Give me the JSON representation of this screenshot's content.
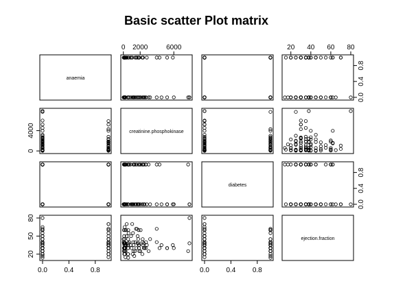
{
  "title": "Basic scatter Plot matrix",
  "chart_data": {
    "type": "scatter",
    "title": "Basic scatter Plot matrix",
    "variables": [
      "anaemia",
      "creatinine.phosphokinase",
      "diabetes",
      "ejection.fraction"
    ],
    "ranges": {
      "anaemia": [
        0,
        1
      ],
      "creatinine.phosphokinase": [
        23,
        7861
      ],
      "diabetes": [
        0,
        1
      ],
      "ejection.fraction": [
        14,
        80
      ]
    },
    "axes": {
      "anaemia": {
        "ticks": [
          0,
          0.4,
          0.8
        ],
        "labels": [
          "0.0",
          "0.4",
          "0.8"
        ]
      },
      "creatinine.phosphokinase": {
        "ticks": [
          0,
          2000,
          6000
        ],
        "labels": [
          "0",
          "2000",
          "6000"
        ],
        "left_ticks": [
          0,
          4000
        ],
        "left_labels": [
          "0",
          "4000"
        ]
      },
      "diabetes": {
        "ticks": [
          0,
          0.4,
          0.8
        ],
        "labels": [
          "0.0",
          "0.4",
          "0.8"
        ]
      },
      "ejection.fraction": {
        "ticks": [
          20,
          40,
          60,
          80
        ],
        "labels": [
          "20",
          "40",
          "60",
          "80"
        ],
        "left_ticks": [
          20,
          50,
          80
        ],
        "left_labels": [
          "20",
          "50",
          "80"
        ]
      }
    },
    "observations": [
      [
        0,
        582,
        0,
        20
      ],
      [
        0,
        7861,
        0,
        38
      ],
      [
        0,
        146,
        0,
        20
      ],
      [
        1,
        111,
        0,
        20
      ],
      [
        1,
        160,
        1,
        20
      ],
      [
        1,
        47,
        0,
        40
      ],
      [
        1,
        246,
        0,
        15
      ],
      [
        1,
        315,
        1,
        60
      ],
      [
        0,
        157,
        0,
        65
      ],
      [
        1,
        123,
        0,
        35
      ],
      [
        1,
        81,
        0,
        38
      ],
      [
        0,
        231,
        1,
        25
      ],
      [
        1,
        981,
        0,
        30
      ],
      [
        1,
        168,
        0,
        38
      ],
      [
        0,
        80,
        1,
        30
      ],
      [
        1,
        379,
        0,
        50
      ],
      [
        1,
        149,
        0,
        38
      ],
      [
        0,
        582,
        1,
        14
      ],
      [
        1,
        125,
        0,
        25
      ],
      [
        1,
        52,
        0,
        25
      ],
      [
        0,
        128,
        1,
        30
      ],
      [
        1,
        220,
        0,
        35
      ],
      [
        0,
        63,
        1,
        60
      ],
      [
        0,
        582,
        1,
        30
      ],
      [
        0,
        148,
        1,
        38
      ],
      [
        0,
        112,
        0,
        40
      ],
      [
        0,
        122,
        0,
        45
      ],
      [
        1,
        60,
        0,
        38
      ],
      [
        0,
        70,
        1,
        30
      ],
      [
        0,
        582,
        0,
        38
      ],
      [
        0,
        23,
        0,
        45
      ],
      [
        1,
        249,
        1,
        35
      ],
      [
        1,
        159,
        1,
        30
      ],
      [
        0,
        94,
        0,
        50
      ],
      [
        1,
        855,
        1,
        35
      ],
      [
        0,
        2656,
        1,
        30
      ],
      [
        0,
        235,
        1,
        38
      ],
      [
        0,
        582,
        0,
        35
      ],
      [
        1,
        124,
        0,
        30
      ],
      [
        1,
        571,
        1,
        45
      ],
      [
        0,
        588,
        1,
        60
      ],
      [
        0,
        582,
        1,
        38
      ],
      [
        0,
        1380,
        0,
        25
      ],
      [
        1,
        582,
        1,
        38
      ],
      [
        0,
        553,
        0,
        20
      ],
      [
        1,
        129,
        1,
        30
      ],
      [
        0,
        582,
        1,
        30
      ],
      [
        0,
        265,
        1,
        25
      ],
      [
        1,
        1846,
        1,
        35
      ],
      [
        1,
        335,
        0,
        35
      ],
      [
        0,
        231,
        0,
        30
      ],
      [
        0,
        1111,
        0,
        20
      ],
      [
        1,
        1853,
        0,
        30
      ],
      [
        0,
        1185,
        0,
        40
      ],
      [
        0,
        196,
        0,
        60
      ],
      [
        1,
        1610,
        1,
        62
      ],
      [
        1,
        2261,
        0,
        20
      ],
      [
        0,
        2522,
        0,
        30
      ],
      [
        0,
        3964,
        1,
        62
      ],
      [
        0,
        2413,
        0,
        38
      ],
      [
        1,
        5882,
        0,
        35
      ],
      [
        0,
        5209,
        0,
        30
      ],
      [
        0,
        7702,
        1,
        25
      ],
      [
        1,
        3966,
        0,
        40
      ],
      [
        0,
        4540,
        0,
        35
      ],
      [
        0,
        2017,
        0,
        25
      ],
      [
        1,
        1820,
        0,
        38
      ],
      [
        0,
        2695,
        1,
        40
      ],
      [
        1,
        1419,
        1,
        40
      ],
      [
        0,
        2060,
        1,
        60
      ],
      [
        1,
        2334,
        1,
        35
      ],
      [
        0,
        1548,
        0,
        30
      ],
      [
        0,
        1896,
        1,
        25
      ],
      [
        1,
        2794,
        0,
        35
      ],
      [
        0,
        3185,
        0,
        45
      ],
      [
        1,
        4300,
        1,
        30
      ],
      [
        0,
        2281,
        1,
        40
      ],
      [
        0,
        1211,
        1,
        35
      ],
      [
        1,
        1767,
        0,
        45
      ],
      [
        0,
        1808,
        0,
        60
      ],
      [
        1,
        5209,
        0,
        30
      ],
      [
        0,
        910,
        0,
        50
      ],
      [
        1,
        615,
        1,
        55
      ],
      [
        0,
        720,
        1,
        40
      ],
      [
        0,
        1688,
        0,
        38
      ],
      [
        1,
        1876,
        1,
        35
      ],
      [
        0,
        2442,
        1,
        30
      ],
      [
        1,
        1054,
        0,
        70
      ],
      [
        0,
        7861,
        0,
        80
      ],
      [
        1,
        2300,
        1,
        45
      ],
      [
        0,
        1150,
        0,
        55
      ],
      [
        0,
        3000,
        1,
        25
      ],
      [
        1,
        1500,
        0,
        62
      ],
      [
        0,
        1300,
        1,
        17
      ],
      [
        0,
        1700,
        0,
        50
      ],
      [
        1,
        400,
        0,
        70
      ],
      [
        0,
        6000,
        0,
        30
      ],
      [
        0,
        1200,
        1,
        25
      ]
    ]
  }
}
